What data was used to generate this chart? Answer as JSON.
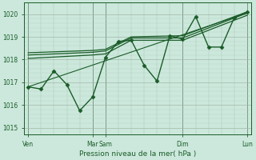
{
  "xlabel": "Pression niveau de la mer( hPa )",
  "bg_color": "#cce8dc",
  "line_color": "#1a5c28",
  "grid_major_color": "#aaaaaa",
  "grid_minor_color": "#cccccc",
  "ylim": [
    1014.7,
    1020.5
  ],
  "yticks": [
    1015,
    1016,
    1017,
    1018,
    1019,
    1020
  ],
  "xlim": [
    -0.3,
    17.3
  ],
  "vlines": [
    0,
    5,
    6,
    12,
    17
  ],
  "xtick_positions": [
    0,
    5,
    6,
    12,
    17
  ],
  "xtick_labels": [
    "Ven",
    "Mar",
    "Sam",
    "Dim",
    "Lun"
  ],
  "n_xcols": 18,
  "series": [
    {
      "x": [
        0,
        1,
        2,
        3,
        4,
        5,
        6,
        7,
        8,
        9,
        10,
        11,
        12,
        13,
        14,
        15,
        16,
        17
      ],
      "y": [
        1016.8,
        1016.7,
        1017.5,
        1016.9,
        1015.75,
        1016.35,
        1018.1,
        1018.8,
        1018.85,
        1017.75,
        1017.05,
        1019.05,
        1018.9,
        1019.9,
        1018.55,
        1018.55,
        1019.85,
        1020.1
      ],
      "marker": "D",
      "markersize": 2.5,
      "linewidth": 1.0
    },
    {
      "x": [
        0,
        5,
        6,
        8,
        12,
        17
      ],
      "y": [
        1018.05,
        1018.2,
        1018.25,
        1018.85,
        1018.85,
        1019.95
      ],
      "marker": null,
      "linewidth": 0.9
    },
    {
      "x": [
        0,
        5,
        6,
        8,
        12,
        17
      ],
      "y": [
        1018.2,
        1018.32,
        1018.38,
        1018.95,
        1018.95,
        1020.05
      ],
      "marker": null,
      "linewidth": 0.9
    },
    {
      "x": [
        0,
        5,
        6,
        8,
        12,
        17
      ],
      "y": [
        1018.3,
        1018.4,
        1018.45,
        1019.0,
        1019.05,
        1020.1
      ],
      "marker": null,
      "linewidth": 0.9
    },
    {
      "x": [
        0,
        17
      ],
      "y": [
        1016.8,
        1020.05
      ],
      "marker": null,
      "linewidth": 0.8
    }
  ]
}
